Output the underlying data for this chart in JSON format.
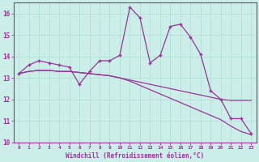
{
  "xlabel": "Windchill (Refroidissement éolien,°C)",
  "bg_color": "#cceee8",
  "line_color": "#993399",
  "grid_color": "#aaddcc",
  "x_data": [
    0,
    1,
    2,
    3,
    4,
    5,
    6,
    7,
    8,
    9,
    10,
    11,
    12,
    13,
    14,
    15,
    16,
    17,
    18,
    19,
    20,
    21,
    22,
    23
  ],
  "y_main": [
    13.2,
    13.6,
    13.8,
    13.7,
    13.6,
    13.5,
    12.7,
    13.3,
    13.8,
    13.8,
    14.05,
    16.3,
    15.8,
    13.7,
    14.05,
    15.4,
    15.5,
    14.9,
    14.1,
    12.4,
    12.0,
    11.1,
    11.1,
    10.4
  ],
  "y_trend1": [
    13.2,
    13.3,
    13.35,
    13.35,
    13.3,
    13.3,
    13.25,
    13.2,
    13.15,
    13.1,
    13.0,
    12.9,
    12.8,
    12.7,
    12.6,
    12.5,
    12.4,
    12.3,
    12.2,
    12.1,
    12.0,
    11.95,
    11.95,
    11.95
  ],
  "y_trend2": [
    13.2,
    13.3,
    13.35,
    13.35,
    13.3,
    13.3,
    13.25,
    13.2,
    13.15,
    13.1,
    13.0,
    12.85,
    12.65,
    12.45,
    12.25,
    12.05,
    11.85,
    11.65,
    11.45,
    11.25,
    11.05,
    10.75,
    10.5,
    10.35
  ],
  "ylim": [
    10,
    16.5
  ],
  "xlim": [
    -0.5,
    23.5
  ],
  "yticks": [
    10,
    11,
    12,
    13,
    14,
    15,
    16
  ],
  "xticks": [
    0,
    1,
    2,
    3,
    4,
    5,
    6,
    7,
    8,
    9,
    10,
    11,
    12,
    13,
    14,
    15,
    16,
    17,
    18,
    19,
    20,
    21,
    22,
    23
  ]
}
